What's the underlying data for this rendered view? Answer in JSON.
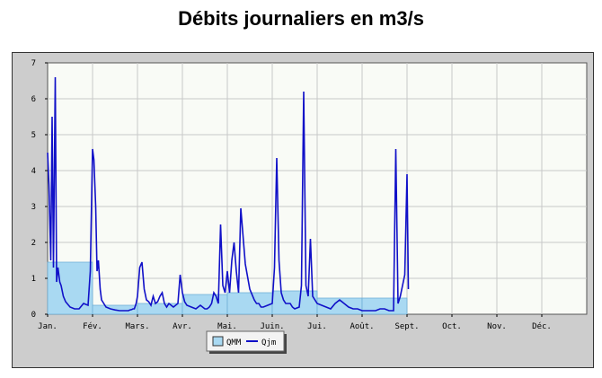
{
  "title": "Débits journaliers en m3/s",
  "colors": {
    "qmm_fill": "#a9d9f2",
    "qmm_stroke": "#6fb0d6",
    "qjm_line": "#1010c8",
    "plot_bg": "#f9fbf6",
    "frame_bg": "#cdcdcd",
    "grid": "#c8c8c8"
  },
  "chart_data": {
    "type": "bar+line",
    "title": "Débits journaliers en m3/s",
    "xlabel": "",
    "ylabel": "",
    "ylim": [
      0,
      7
    ],
    "yticks": [
      "0",
      "1",
      "2",
      "3",
      "4",
      "5",
      "6",
      "7"
    ],
    "xlim": [
      0,
      12
    ],
    "grid": true,
    "legend_position": "bottom-center",
    "categories": [
      "Jan.",
      "Fév.",
      "Mars.",
      "Avr.",
      "Mai.",
      "Juin.",
      "Jui.",
      "Août.",
      "Sept.",
      "Oct.",
      "Nov.",
      "Déc."
    ],
    "series": [
      {
        "name": "QMM",
        "kind": "bar",
        "values": [
          1.45,
          0.25,
          0.3,
          0.55,
          0.6,
          0.65,
          0.45,
          0.45,
          null,
          null,
          null,
          null
        ]
      },
      {
        "name": "Qjm",
        "kind": "line",
        "x": [
          0.0,
          0.03,
          0.07,
          0.1,
          0.13,
          0.17,
          0.2,
          0.23,
          0.27,
          0.3,
          0.35,
          0.4,
          0.5,
          0.6,
          0.7,
          0.8,
          0.9,
          0.95,
          1.0,
          1.03,
          1.07,
          1.1,
          1.13,
          1.17,
          1.2,
          1.25,
          1.3,
          1.4,
          1.5,
          1.6,
          1.7,
          1.8,
          1.8,
          1.83,
          1.87,
          1.9,
          1.93,
          1.97,
          2.0,
          2.05,
          2.1,
          2.15,
          2.2,
          2.25,
          2.3,
          2.35,
          2.4,
          2.45,
          2.5,
          2.55,
          2.6,
          2.65,
          2.7,
          2.8,
          2.9,
          2.95,
          3.0,
          3.05,
          3.1,
          3.2,
          3.3,
          3.35,
          3.4,
          3.45,
          3.5,
          3.55,
          3.6,
          3.65,
          3.7,
          3.75,
          3.8,
          3.85,
          3.9,
          3.95,
          4.0,
          4.05,
          4.1,
          4.15,
          4.2,
          4.25,
          4.3,
          4.4,
          4.5,
          4.6,
          4.65,
          4.7,
          4.75,
          4.8,
          4.9,
          5.0,
          5.05,
          5.1,
          5.15,
          5.2,
          5.25,
          5.3,
          5.35,
          5.4,
          5.45,
          5.5,
          5.6,
          5.65,
          5.7,
          5.75,
          5.8,
          5.85,
          5.9,
          6.0,
          6.1,
          6.2,
          6.3,
          6.4,
          6.5,
          6.6,
          6.7,
          6.8,
          6.9,
          7.0,
          7.1,
          7.2,
          7.3,
          7.4,
          7.5,
          7.6,
          7.7,
          7.75,
          7.8,
          7.85,
          7.9,
          7.95,
          8.0,
          8.03
        ],
        "values": [
          4.5,
          3.6,
          1.5,
          5.5,
          1.3,
          6.6,
          0.9,
          1.3,
          0.9,
          0.8,
          0.5,
          0.35,
          0.2,
          0.15,
          0.15,
          0.3,
          0.25,
          1.2,
          4.6,
          4.3,
          3.0,
          1.2,
          1.5,
          0.7,
          0.4,
          0.3,
          0.2,
          0.15,
          0.12,
          0.1,
          0.1,
          0.1,
          0.1,
          0.12,
          0.13,
          0.15,
          0.15,
          0.3,
          0.5,
          1.3,
          1.45,
          0.7,
          0.4,
          0.35,
          0.25,
          0.5,
          0.3,
          0.35,
          0.5,
          0.6,
          0.3,
          0.2,
          0.3,
          0.2,
          0.3,
          1.1,
          0.6,
          0.35,
          0.25,
          0.2,
          0.15,
          0.2,
          0.25,
          0.2,
          0.15,
          0.15,
          0.2,
          0.3,
          0.6,
          0.5,
          0.3,
          2.5,
          0.8,
          0.6,
          1.2,
          0.6,
          1.5,
          2.0,
          1.2,
          0.6,
          2.95,
          1.4,
          0.7,
          0.4,
          0.3,
          0.3,
          0.2,
          0.2,
          0.25,
          0.3,
          1.3,
          4.35,
          1.5,
          0.6,
          0.4,
          0.3,
          0.3,
          0.3,
          0.2,
          0.15,
          0.2,
          0.8,
          6.2,
          0.8,
          0.5,
          2.1,
          0.5,
          0.3,
          0.25,
          0.2,
          0.15,
          0.3,
          0.4,
          0.3,
          0.2,
          0.15,
          0.15,
          0.1,
          0.1,
          0.1,
          0.1,
          0.15,
          0.15,
          0.1,
          0.1,
          4.6,
          0.3,
          0.5,
          0.8,
          1.1,
          3.9,
          0.7
        ]
      }
    ]
  },
  "legend": {
    "qmm_label": "QMM",
    "qjm_label": "Qjm"
  }
}
